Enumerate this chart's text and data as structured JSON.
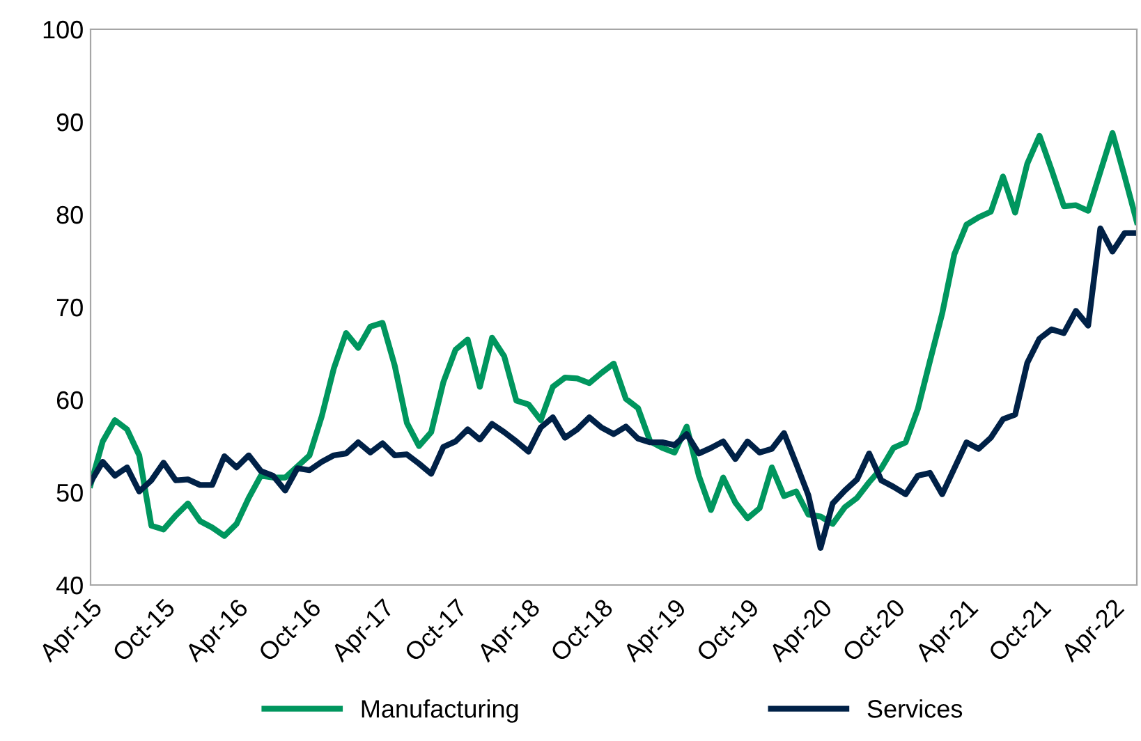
{
  "chart_data": {
    "type": "line",
    "categories": [
      "Apr-15",
      null,
      null,
      null,
      null,
      null,
      "Oct-15",
      null,
      null,
      null,
      null,
      null,
      "Apr-16",
      null,
      null,
      null,
      null,
      null,
      "Oct-16",
      null,
      null,
      null,
      null,
      null,
      "Apr-17",
      null,
      null,
      null,
      null,
      null,
      "Oct-17",
      null,
      null,
      null,
      null,
      null,
      "Apr-18",
      null,
      null,
      null,
      null,
      null,
      "Oct-18",
      null,
      null,
      null,
      null,
      null,
      "Apr-19",
      null,
      null,
      null,
      null,
      null,
      "Oct-19",
      null,
      null,
      null,
      null,
      null,
      "Apr-20",
      null,
      null,
      null,
      null,
      null,
      "Oct-20",
      null,
      null,
      null,
      null,
      null,
      "Apr-21",
      null,
      null,
      null,
      null,
      null,
      "Oct-21",
      null,
      null,
      null,
      null,
      null,
      "Apr-22",
      null,
      null
    ],
    "series": [
      {
        "name": "Manufacturing",
        "color": "#00965e",
        "values": [
          50.8,
          55.5,
          57.8,
          56.8,
          54.0,
          46.4,
          46.0,
          47.5,
          48.8,
          46.9,
          46.2,
          45.3,
          46.6,
          49.4,
          51.8,
          51.6,
          51.6,
          52.8,
          54.0,
          58.2,
          63.4,
          67.2,
          65.6,
          67.9,
          68.3,
          63.7,
          57.5,
          55.0,
          56.5,
          61.9,
          65.4,
          66.5,
          61.4,
          66.7,
          64.7,
          59.9,
          59.5,
          57.8,
          61.4,
          62.4,
          62.3,
          61.8,
          62.9,
          63.9,
          60.1,
          59.1,
          55.5,
          54.8,
          54.3,
          57.1,
          51.8,
          48.1,
          51.6,
          48.9,
          47.2,
          48.3,
          52.7,
          49.6,
          50.1,
          47.6,
          47.4,
          46.6,
          48.4,
          49.4,
          51.1,
          52.6,
          54.8,
          55.4,
          59.0,
          64.2,
          69.3,
          75.7,
          78.9,
          79.7,
          80.3,
          84.1,
          80.2,
          85.5,
          88.5,
          84.8,
          80.9,
          81.0,
          80.4,
          84.6,
          88.8,
          84.1,
          79.2
        ]
      },
      {
        "name": "Services",
        "color": "#002147",
        "values": [
          51.1,
          53.3,
          51.8,
          52.7,
          50.1,
          51.3,
          53.2,
          51.3,
          51.4,
          50.8,
          50.8,
          53.9,
          52.7,
          54.0,
          52.3,
          51.8,
          50.2,
          52.6,
          52.4,
          53.3,
          54.0,
          54.2,
          55.4,
          54.3,
          55.3,
          54.0,
          54.1,
          53.1,
          52.0,
          54.9,
          55.5,
          56.8,
          55.7,
          57.4,
          56.5,
          55.5,
          54.4,
          57.0,
          58.1,
          55.9,
          56.8,
          58.1,
          57.0,
          56.3,
          57.1,
          55.8,
          55.4,
          55.4,
          55.1,
          56.3,
          54.2,
          54.8,
          55.5,
          53.6,
          55.5,
          54.3,
          54.7,
          56.4,
          53.1,
          49.7,
          44.0,
          48.8,
          50.2,
          51.4,
          54.2,
          51.3,
          50.6,
          49.8,
          51.8,
          52.1,
          49.8,
          52.6,
          55.4,
          54.7,
          55.9,
          57.9,
          58.4,
          64.0,
          66.6,
          67.6,
          67.2,
          69.6,
          68.0,
          78.5,
          76.0,
          78.0,
          78.0
        ]
      }
    ],
    "ylim": [
      40,
      100
    ],
    "yticks": [
      40,
      50,
      60,
      70,
      80,
      90,
      100
    ],
    "grid": false,
    "legend": "bottom",
    "marker": "none",
    "line_style": "solid"
  }
}
